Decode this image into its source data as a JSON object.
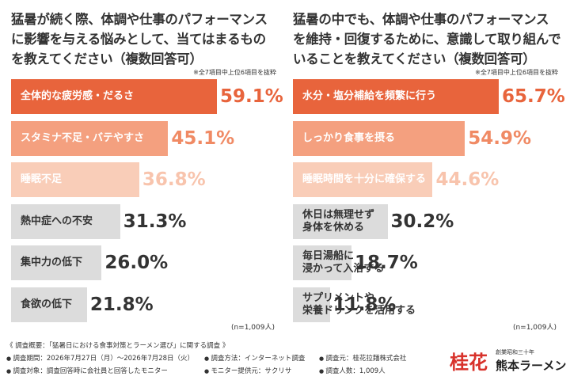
{
  "chart_data": [
    {
      "type": "bar",
      "orientation": "horizontal",
      "title": "猛暑が続く際、体調や仕事のパフォーマンス\nに影響を与える悩みとして、当てはまるもの\nを教えてください（複数回答可）",
      "note": "※全7項目中上位6項目を抜粋",
      "categories": [
        "全体的な疲労感・だるさ",
        "スタミナ不足・バテやすさ",
        "睡眠不足",
        "熱中症への不安",
        "集中力の低下",
        "食欲の低下"
      ],
      "values": [
        59.1,
        45.1,
        36.8,
        31.3,
        26.0,
        21.8
      ],
      "value_labels": [
        "59.1%",
        "45.1%",
        "36.8%",
        "31.3%",
        "26.0%",
        "21.8%"
      ],
      "colors": [
        "#e8643c",
        "#f4a07f",
        "#f9cdb8",
        "#dcdcdc",
        "#dcdcdc",
        "#dcdcdc"
      ],
      "value_label_colors": [
        "#e8643c",
        "#f08a64",
        "#f8c4ad",
        "#333333",
        "#333333",
        "#333333"
      ],
      "sample": "(n=1,009人)"
    },
    {
      "type": "bar",
      "orientation": "horizontal",
      "title": "猛暑の中でも、体調や仕事のパフォーマンス\nを維持・回復するために、意識して取り組んで\nいることを教えてください（複数回答可）",
      "note": "※全7項目中上位6項目を抜粋",
      "categories": [
        "水分・塩分補給を頻繁に行う",
        "しっかり食事を摂る",
        "睡眠時間を十分に確保する",
        "休日は無理せず\n身体を休める",
        "毎日湯船に\n浸かって入浴する",
        "サプリメントや\n栄養ドリンクを活用する"
      ],
      "values": [
        65.7,
        54.9,
        44.6,
        30.2,
        18.7,
        11.8
      ],
      "value_labels": [
        "65.7%",
        "54.9%",
        "44.6%",
        "30.2%",
        "18.7%",
        "11.8%"
      ],
      "colors": [
        "#e8643c",
        "#f4a07f",
        "#f9cdb8",
        "#dcdcdc",
        "#dcdcdc",
        "#dcdcdc"
      ],
      "value_label_colors": [
        "#e8643c",
        "#f08a64",
        "#f8c4ad",
        "#333333",
        "#333333",
        "#333333"
      ],
      "sample": "(n=1,009人)"
    }
  ],
  "footer": {
    "summary": "《 調査概要：「猛暑日における食事対策とラーメン選び」に関する調査 》",
    "items": [
      "調査期間：2026年7月27日（月）～2026年7月28日（火）",
      "調査方法：インターネット調査",
      "調査元：桂花拉麺株式会社",
      "調査対象：調査回答時に会社員と回答したモニター",
      "モニター提供元：サクリサ",
      "調査人数：1,009人"
    ],
    "logo_mark": "桂花",
    "logo_tagline": "創業昭和三十年",
    "logo_name": "熊本ラーメン"
  }
}
